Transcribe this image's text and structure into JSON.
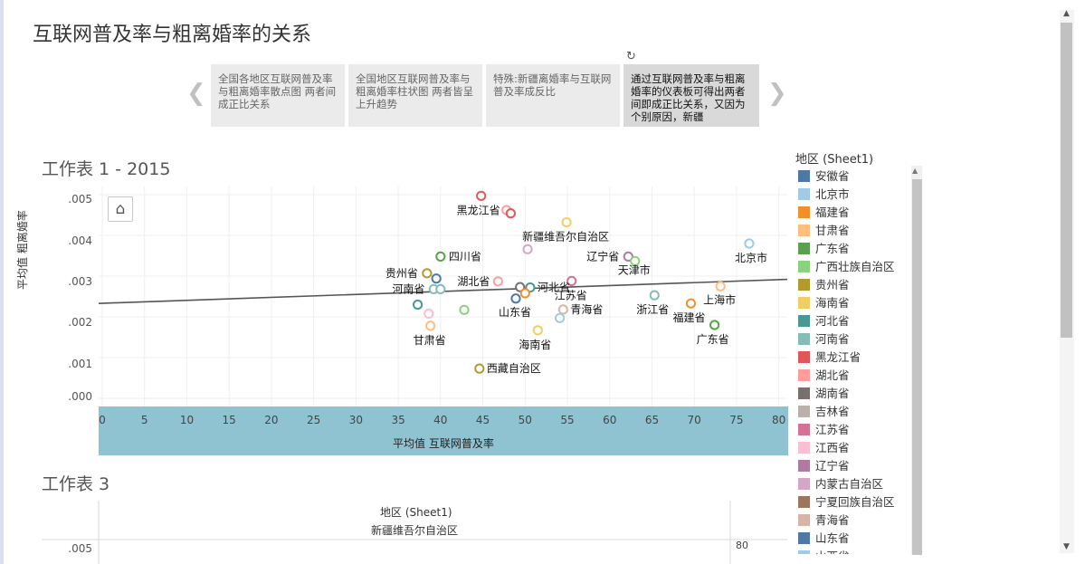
{
  "page": {
    "title": "互联网普及率与粗离婚率的关系"
  },
  "story": {
    "prev_icon": "chevron-left-icon",
    "next_icon": "chevron-right-icon",
    "revert_icon": "revert-icon",
    "points": [
      {
        "text": "全国各地区互联网普及率与粗离婚率散点图 两者间成正比关系",
        "active": false
      },
      {
        "text": "全国地区互联网普及率与粗离婚率柱状图 两者皆呈上升趋势",
        "active": false
      },
      {
        "text": "特殊:新疆离婚率与互联网普及率成反比",
        "active": false
      },
      {
        "text": "通过互联网普及率与粗离婚率的仪表板可得出两者间即成正比关系，又因为个别原因，新疆",
        "active": true
      }
    ]
  },
  "sheet1": {
    "title": "工作表 1 - 2015",
    "home_icon": "home-icon",
    "x_axis_title": "平均值 互联网普及率",
    "y_axis_title": "平均值 粗离婚率",
    "x_ticks": [
      "0",
      "5",
      "10",
      "15",
      "20",
      "25",
      "30",
      "35",
      "40",
      "45",
      "50",
      "55",
      "60",
      "65",
      "70",
      "75",
      "80"
    ],
    "y_ticks": [
      ".005",
      ".004",
      ".003",
      ".002",
      ".001",
      ".000"
    ]
  },
  "chart_data": {
    "type": "scatter",
    "xlabel": "平均值 互联网普及率",
    "ylabel": "平均值 粗离婚率",
    "xlim": [
      0,
      81
    ],
    "ylim": [
      -0.0002,
      0.0052
    ],
    "trend_line": [
      [
        0,
        0.00233
      ],
      [
        81,
        0.00292
      ]
    ],
    "points": [
      {
        "name": "黑龙江省",
        "x": 44.8,
        "y": 0.00497,
        "color": "#e15759",
        "label": "黑龙江省"
      },
      {
        "name": "吉林省",
        "x": 47.8,
        "y": 0.00462,
        "color": "#ff9d9a",
        "label": ""
      },
      {
        "name": "辽宁省(2)",
        "x": 48.3,
        "y": 0.00454,
        "color": "#e15759",
        "label": ""
      },
      {
        "name": "新疆维吾尔自治区",
        "x": 54.9,
        "y": 0.00432,
        "color": "#f1ce63",
        "label": "新疆维吾尔自治区"
      },
      {
        "name": "内蒙古自治区",
        "x": 50.3,
        "y": 0.00366,
        "color": "#d4a6c8",
        "label": ""
      },
      {
        "name": "辽宁省",
        "x": 62.2,
        "y": 0.00348,
        "color": "#b07aa1",
        "label": "辽宁省"
      },
      {
        "name": "天津市",
        "x": 63.0,
        "y": 0.00337,
        "color": "#8cd17d",
        "label": "天津市"
      },
      {
        "name": "北京市",
        "x": 76.5,
        "y": 0.0038,
        "color": "#a0cbe8",
        "label": "北京市"
      },
      {
        "name": "四川省",
        "x": 40.0,
        "y": 0.00348,
        "color": "#59a14f",
        "label": "四川省"
      },
      {
        "name": "贵州省",
        "x": 38.4,
        "y": 0.00307,
        "color": "#b6992d",
        "label": "贵州省"
      },
      {
        "name": "重庆市",
        "x": 39.5,
        "y": 0.00294,
        "color": "#4e79a7",
        "label": ""
      },
      {
        "name": "湖北省",
        "x": 46.8,
        "y": 0.00287,
        "color": "#ff9d9a",
        "label": "湖北省"
      },
      {
        "name": "河北省",
        "x": 50.6,
        "y": 0.00272,
        "color": "#499894",
        "label": "河北省"
      },
      {
        "name": "湖南省",
        "x": 49.4,
        "y": 0.00273,
        "color": "#79706e",
        "label": ""
      },
      {
        "name": "河南省",
        "x": 39.2,
        "y": 0.00268,
        "color": "#86bcb6",
        "label": "河南省"
      },
      {
        "name": "河南省(2)",
        "x": 40.0,
        "y": 0.00268,
        "color": "#86bcb6",
        "label": ""
      },
      {
        "name": "江苏省",
        "x": 55.5,
        "y": 0.00288,
        "color": "#d37295",
        "label": "江苏省"
      },
      {
        "name": "陕西省",
        "x": 50.0,
        "y": 0.00258,
        "color": "#f28e2b",
        "label": ""
      },
      {
        "name": "山东省",
        "x": 48.9,
        "y": 0.00245,
        "color": "#4e79a7",
        "label": "山东省"
      },
      {
        "name": "浙江省",
        "x": 65.3,
        "y": 0.00253,
        "color": "#86bcb6",
        "label": "浙江省"
      },
      {
        "name": "上海市",
        "x": 73.1,
        "y": 0.00275,
        "color": "#ffbe7d",
        "label": "上海市"
      },
      {
        "name": "福建省",
        "x": 69.6,
        "y": 0.00233,
        "color": "#f28e2b",
        "label": "福建省"
      },
      {
        "name": "青海省",
        "x": 54.5,
        "y": 0.00218,
        "color": "#d7b5a6",
        "label": "青海省"
      },
      {
        "name": "宁夏回族自治区(2)",
        "x": 54.1,
        "y": 0.00197,
        "color": "#a0cbe8",
        "label": ""
      },
      {
        "name": "广西壮族自治区",
        "x": 42.8,
        "y": 0.00217,
        "color": "#8cd17d",
        "label": ""
      },
      {
        "name": "河北省(2)",
        "x": 37.3,
        "y": 0.0023,
        "color": "#499894",
        "label": ""
      },
      {
        "name": "江西省",
        "x": 38.6,
        "y": 0.00208,
        "color": "#fabfd2",
        "label": ""
      },
      {
        "name": "甘肃省",
        "x": 38.8,
        "y": 0.00178,
        "color": "#ffbe7d",
        "label": "甘肃省"
      },
      {
        "name": "广东省",
        "x": 72.4,
        "y": 0.0018,
        "color": "#59a14f",
        "label": "广东省"
      },
      {
        "name": "海南省",
        "x": 51.5,
        "y": 0.00167,
        "color": "#f1ce63",
        "label": "海南省"
      },
      {
        "name": "西藏自治区",
        "x": 44.6,
        "y": 0.00073,
        "color": "#b6992d",
        "label": "西藏自治区"
      }
    ]
  },
  "legend": {
    "title": "地区 (Sheet1)",
    "items": [
      {
        "label": "安徽省",
        "color": "#4e79a7"
      },
      {
        "label": "北京市",
        "color": "#a0cbe8"
      },
      {
        "label": "福建省",
        "color": "#f28e2b"
      },
      {
        "label": "甘肃省",
        "color": "#ffbe7d"
      },
      {
        "label": "广东省",
        "color": "#59a14f"
      },
      {
        "label": "广西壮族自治区",
        "color": "#8cd17d"
      },
      {
        "label": "贵州省",
        "color": "#b6992d"
      },
      {
        "label": "海南省",
        "color": "#f1ce63"
      },
      {
        "label": "河北省",
        "color": "#499894"
      },
      {
        "label": "河南省",
        "color": "#86bcb6"
      },
      {
        "label": "黑龙江省",
        "color": "#e15759"
      },
      {
        "label": "湖北省",
        "color": "#ff9d9a"
      },
      {
        "label": "湖南省",
        "color": "#79706e"
      },
      {
        "label": "吉林省",
        "color": "#bab0ac"
      },
      {
        "label": "江苏省",
        "color": "#d37295"
      },
      {
        "label": "江西省",
        "color": "#fabfd2"
      },
      {
        "label": "辽宁省",
        "color": "#b07aa1"
      },
      {
        "label": "内蒙古自治区",
        "color": "#d4a6c8"
      },
      {
        "label": "宁夏回族自治区",
        "color": "#9d7660"
      },
      {
        "label": "青海省",
        "color": "#d7b5a6"
      },
      {
        "label": "山东省",
        "color": "#4e79a7"
      },
      {
        "label": "山西省",
        "color": "#a0cbe8"
      }
    ]
  },
  "sheet3": {
    "title": "工作表 3",
    "header_field": "地区 (Sheet1)",
    "header_value": "新疆维吾尔自治区",
    "y_tick": ".005",
    "x_value": "80"
  }
}
